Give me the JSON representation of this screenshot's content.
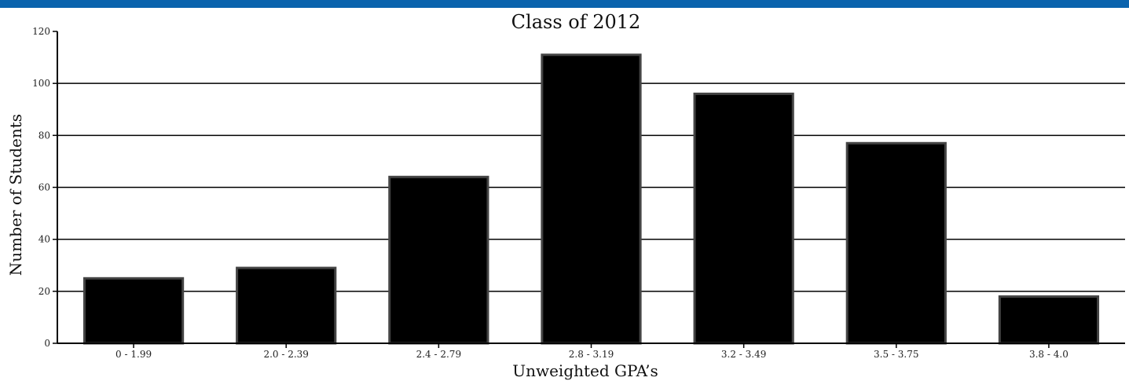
{
  "chart_data": {
    "type": "bar",
    "title": "Class of 2012",
    "xlabel": "Unweighted GPA’s",
    "ylabel": "Number of Students",
    "categories": [
      "0 - 1.99",
      "2.0 - 2.39",
      "2.4 - 2.79",
      "2.8 - 3.19",
      "3.2 - 3.49",
      "3.5 - 3.75",
      "3.8 - 4.0"
    ],
    "values": [
      25,
      29,
      64,
      111,
      96,
      77,
      18
    ],
    "ylim": [
      0,
      120
    ],
    "yticks": [
      0,
      20,
      40,
      60,
      80,
      100,
      120
    ],
    "grid": true,
    "legend": "none"
  },
  "colors": {
    "top_bar": "#0a63ad",
    "bar_fill": "#000000",
    "bar_stroke": "#444444",
    "grid": "#000000"
  }
}
